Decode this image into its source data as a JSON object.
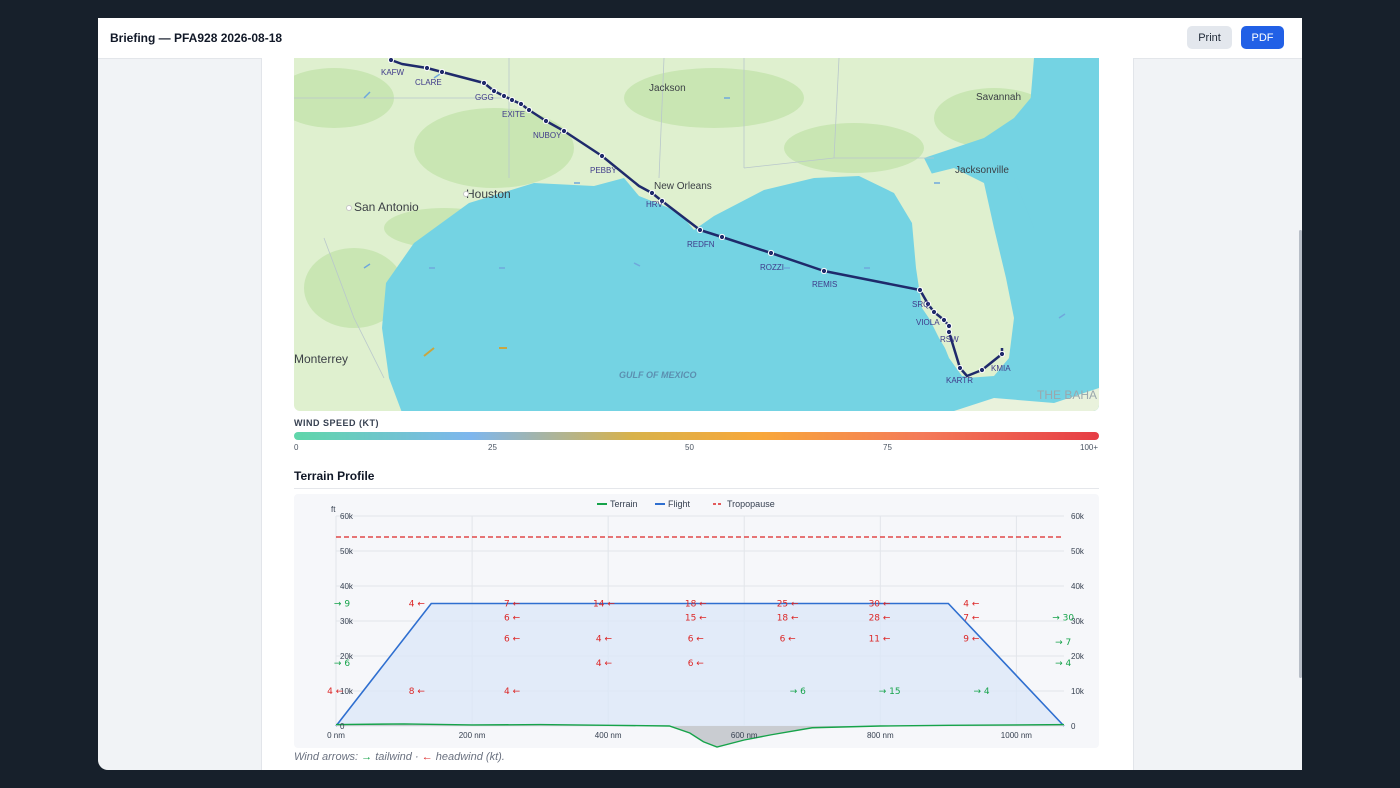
{
  "header": {
    "title": "Briefing — PFA928 2026-08-18",
    "print_label": "Print",
    "pdf_label": "PDF"
  },
  "map": {
    "cities": [
      "Jackson",
      "Savannah",
      "Jacksonville",
      "New Orleans",
      "Houston",
      "San Antonio",
      "Monterrey"
    ],
    "sea_label": "GULF OF MEXICO",
    "corner_label": "THE BAHA",
    "waypoints": [
      "KAFW",
      "CLARE",
      "GGG",
      "EXITE",
      "NUBOY",
      "PEBBY",
      "HRV",
      "REDFN",
      "ROZZI",
      "REMIS",
      "SRQ",
      "VIOLA",
      "RSW",
      "KARTR",
      "KMIA"
    ]
  },
  "wind_legend": {
    "title": "WIND SPEED (KT)",
    "ticks": [
      "0",
      "25",
      "50",
      "75",
      "100+"
    ]
  },
  "terrain": {
    "section_title": "Terrain Profile",
    "legend": [
      "Terrain",
      "Flight",
      "Tropopause"
    ],
    "y_unit": "ft"
  },
  "footnote": {
    "prefix": "Wind arrows:",
    "tail": "tailwind",
    "sep": "·",
    "head": "headwind (kt)."
  },
  "colors": {
    "route": "#1f2a6b",
    "flight": "#2f6fd0",
    "terrain": "#16a34a",
    "tropopause": "#dc2626",
    "pdf_button": "#2160e6"
  },
  "chart_data": {
    "type": "line",
    "title": "Terrain Profile",
    "xlabel": "",
    "ylabel": "ft",
    "xlim": [
      0,
      1070
    ],
    "ylim": [
      0,
      60000
    ],
    "x_ticks": [
      "0 nm",
      "200 nm",
      "400 nm",
      "600 nm",
      "800 nm",
      "1000 nm"
    ],
    "y_ticks_left": [
      "0",
      "10k",
      "20k",
      "30k",
      "40k",
      "50k",
      "60k"
    ],
    "y_ticks_right": [
      "0",
      "10k",
      "20k",
      "30k",
      "40k",
      "50k",
      "60k"
    ],
    "series": [
      {
        "name": "Flight",
        "x": [
          0,
          140,
          900,
          1070
        ],
        "y": [
          0,
          35000,
          35000,
          0
        ]
      },
      {
        "name": "Terrain",
        "x": [
          0,
          100,
          200,
          300,
          400,
          490,
          520,
          540,
          560,
          600,
          640,
          700,
          800,
          900,
          1000,
          1070
        ],
        "y": [
          400,
          600,
          300,
          400,
          200,
          0,
          -2000,
          -4500,
          -6000,
          -4000,
          -2500,
          -500,
          0,
          200,
          300,
          400
        ]
      },
      {
        "name": "Tropopause",
        "x": [
          0,
          1070
        ],
        "y": [
          54000,
          54000
        ]
      }
    ],
    "wind_labels": [
      {
        "x": 0,
        "y": 35000,
        "v": "9",
        "dir": "tail"
      },
      {
        "x": 0,
        "y": 18000,
        "v": "6",
        "dir": "tail"
      },
      {
        "x": -10,
        "y": 10000,
        "v": "4",
        "dir": "head"
      },
      {
        "x": 110,
        "y": 35000,
        "v": "4",
        "dir": "head"
      },
      {
        "x": 110,
        "y": 10000,
        "v": "8",
        "dir": "head"
      },
      {
        "x": 250,
        "y": 35000,
        "v": "7",
        "dir": "head"
      },
      {
        "x": 250,
        "y": 31000,
        "v": "6",
        "dir": "head"
      },
      {
        "x": 250,
        "y": 25000,
        "v": "6",
        "dir": "head"
      },
      {
        "x": 250,
        "y": 10000,
        "v": "4",
        "dir": "head"
      },
      {
        "x": 385,
        "y": 35000,
        "v": "14",
        "dir": "head"
      },
      {
        "x": 385,
        "y": 25000,
        "v": "4",
        "dir": "head"
      },
      {
        "x": 385,
        "y": 18000,
        "v": "4",
        "dir": "head"
      },
      {
        "x": 520,
        "y": 35000,
        "v": "18",
        "dir": "head"
      },
      {
        "x": 520,
        "y": 31000,
        "v": "15",
        "dir": "head"
      },
      {
        "x": 520,
        "y": 25000,
        "v": "6",
        "dir": "head"
      },
      {
        "x": 520,
        "y": 18000,
        "v": "6",
        "dir": "head"
      },
      {
        "x": 655,
        "y": 35000,
        "v": "25",
        "dir": "head"
      },
      {
        "x": 655,
        "y": 31000,
        "v": "18",
        "dir": "head"
      },
      {
        "x": 655,
        "y": 25000,
        "v": "6",
        "dir": "head"
      },
      {
        "x": 670,
        "y": 10000,
        "v": "6",
        "dir": "tail"
      },
      {
        "x": 790,
        "y": 35000,
        "v": "30",
        "dir": "head"
      },
      {
        "x": 790,
        "y": 31000,
        "v": "28",
        "dir": "head"
      },
      {
        "x": 790,
        "y": 25000,
        "v": "11",
        "dir": "head"
      },
      {
        "x": 805,
        "y": 10000,
        "v": "15",
        "dir": "tail"
      },
      {
        "x": 925,
        "y": 35000,
        "v": "4",
        "dir": "head"
      },
      {
        "x": 925,
        "y": 31000,
        "v": "7",
        "dir": "head"
      },
      {
        "x": 925,
        "y": 25000,
        "v": "9",
        "dir": "head"
      },
      {
        "x": 940,
        "y": 10000,
        "v": "4",
        "dir": "tail"
      },
      {
        "x": 1060,
        "y": 31000,
        "v": "30",
        "dir": "tail"
      },
      {
        "x": 1060,
        "y": 24000,
        "v": "7",
        "dir": "tail"
      },
      {
        "x": 1060,
        "y": 18000,
        "v": "4",
        "dir": "tail"
      }
    ]
  }
}
